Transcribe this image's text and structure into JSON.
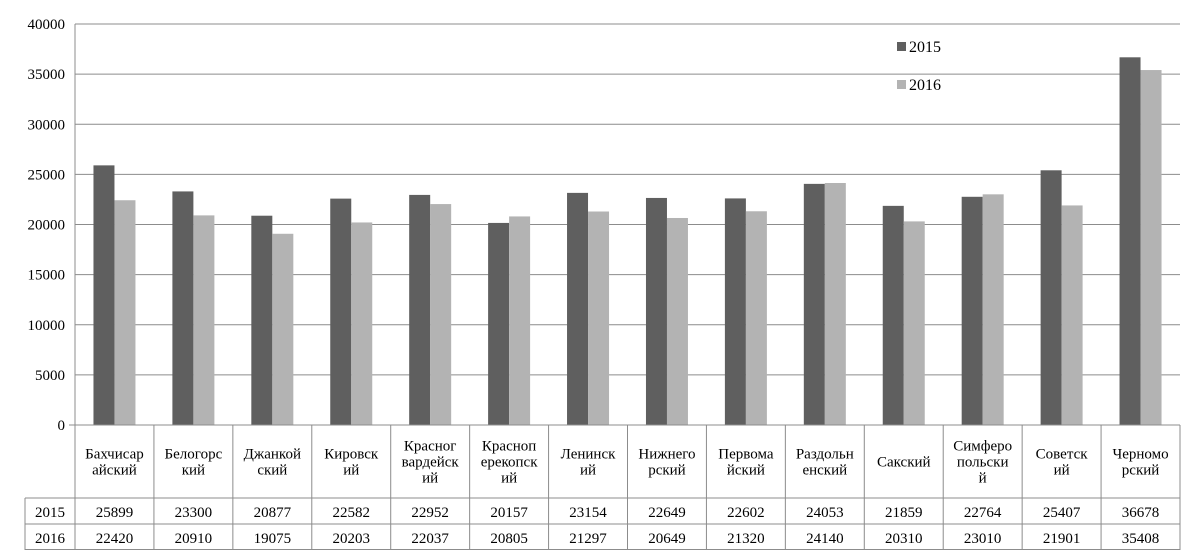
{
  "chart_data": {
    "type": "bar",
    "title": "",
    "xlabel": "",
    "ylabel": "",
    "ylim": [
      0,
      40000
    ],
    "yticks": [
      0,
      5000,
      10000,
      15000,
      20000,
      25000,
      30000,
      35000,
      40000
    ],
    "grid": true,
    "legend_position": "top-right",
    "categories": [
      [
        "Бахчисар",
        "айский"
      ],
      [
        "Белогорс",
        "кий"
      ],
      [
        "Джанкой",
        "ский"
      ],
      [
        "Кировск",
        "ий"
      ],
      [
        "Красног",
        "вардейск",
        "ий"
      ],
      [
        "Красноп",
        "ерекопск",
        "ий"
      ],
      [
        "Ленинск",
        "ий"
      ],
      [
        "Нижнего",
        "рский"
      ],
      [
        "Первома",
        "йский"
      ],
      [
        "Раздольн",
        "енский"
      ],
      [
        "Сакский"
      ],
      [
        "Симферо",
        "польски",
        "й"
      ],
      [
        "Советск",
        "ий"
      ],
      [
        "Черномо",
        "рский"
      ]
    ],
    "series": [
      {
        "name": "2015",
        "color": "#5f5f5f",
        "values": [
          25899,
          23300,
          20877,
          22582,
          22952,
          20157,
          23154,
          22649,
          22602,
          24053,
          21859,
          22764,
          25407,
          36678
        ]
      },
      {
        "name": "2016",
        "color": "#b3b3b3",
        "values": [
          22420,
          20910,
          19075,
          20203,
          22037,
          20805,
          21297,
          20649,
          21320,
          24140,
          20310,
          23010,
          21901,
          35408
        ]
      }
    ]
  }
}
